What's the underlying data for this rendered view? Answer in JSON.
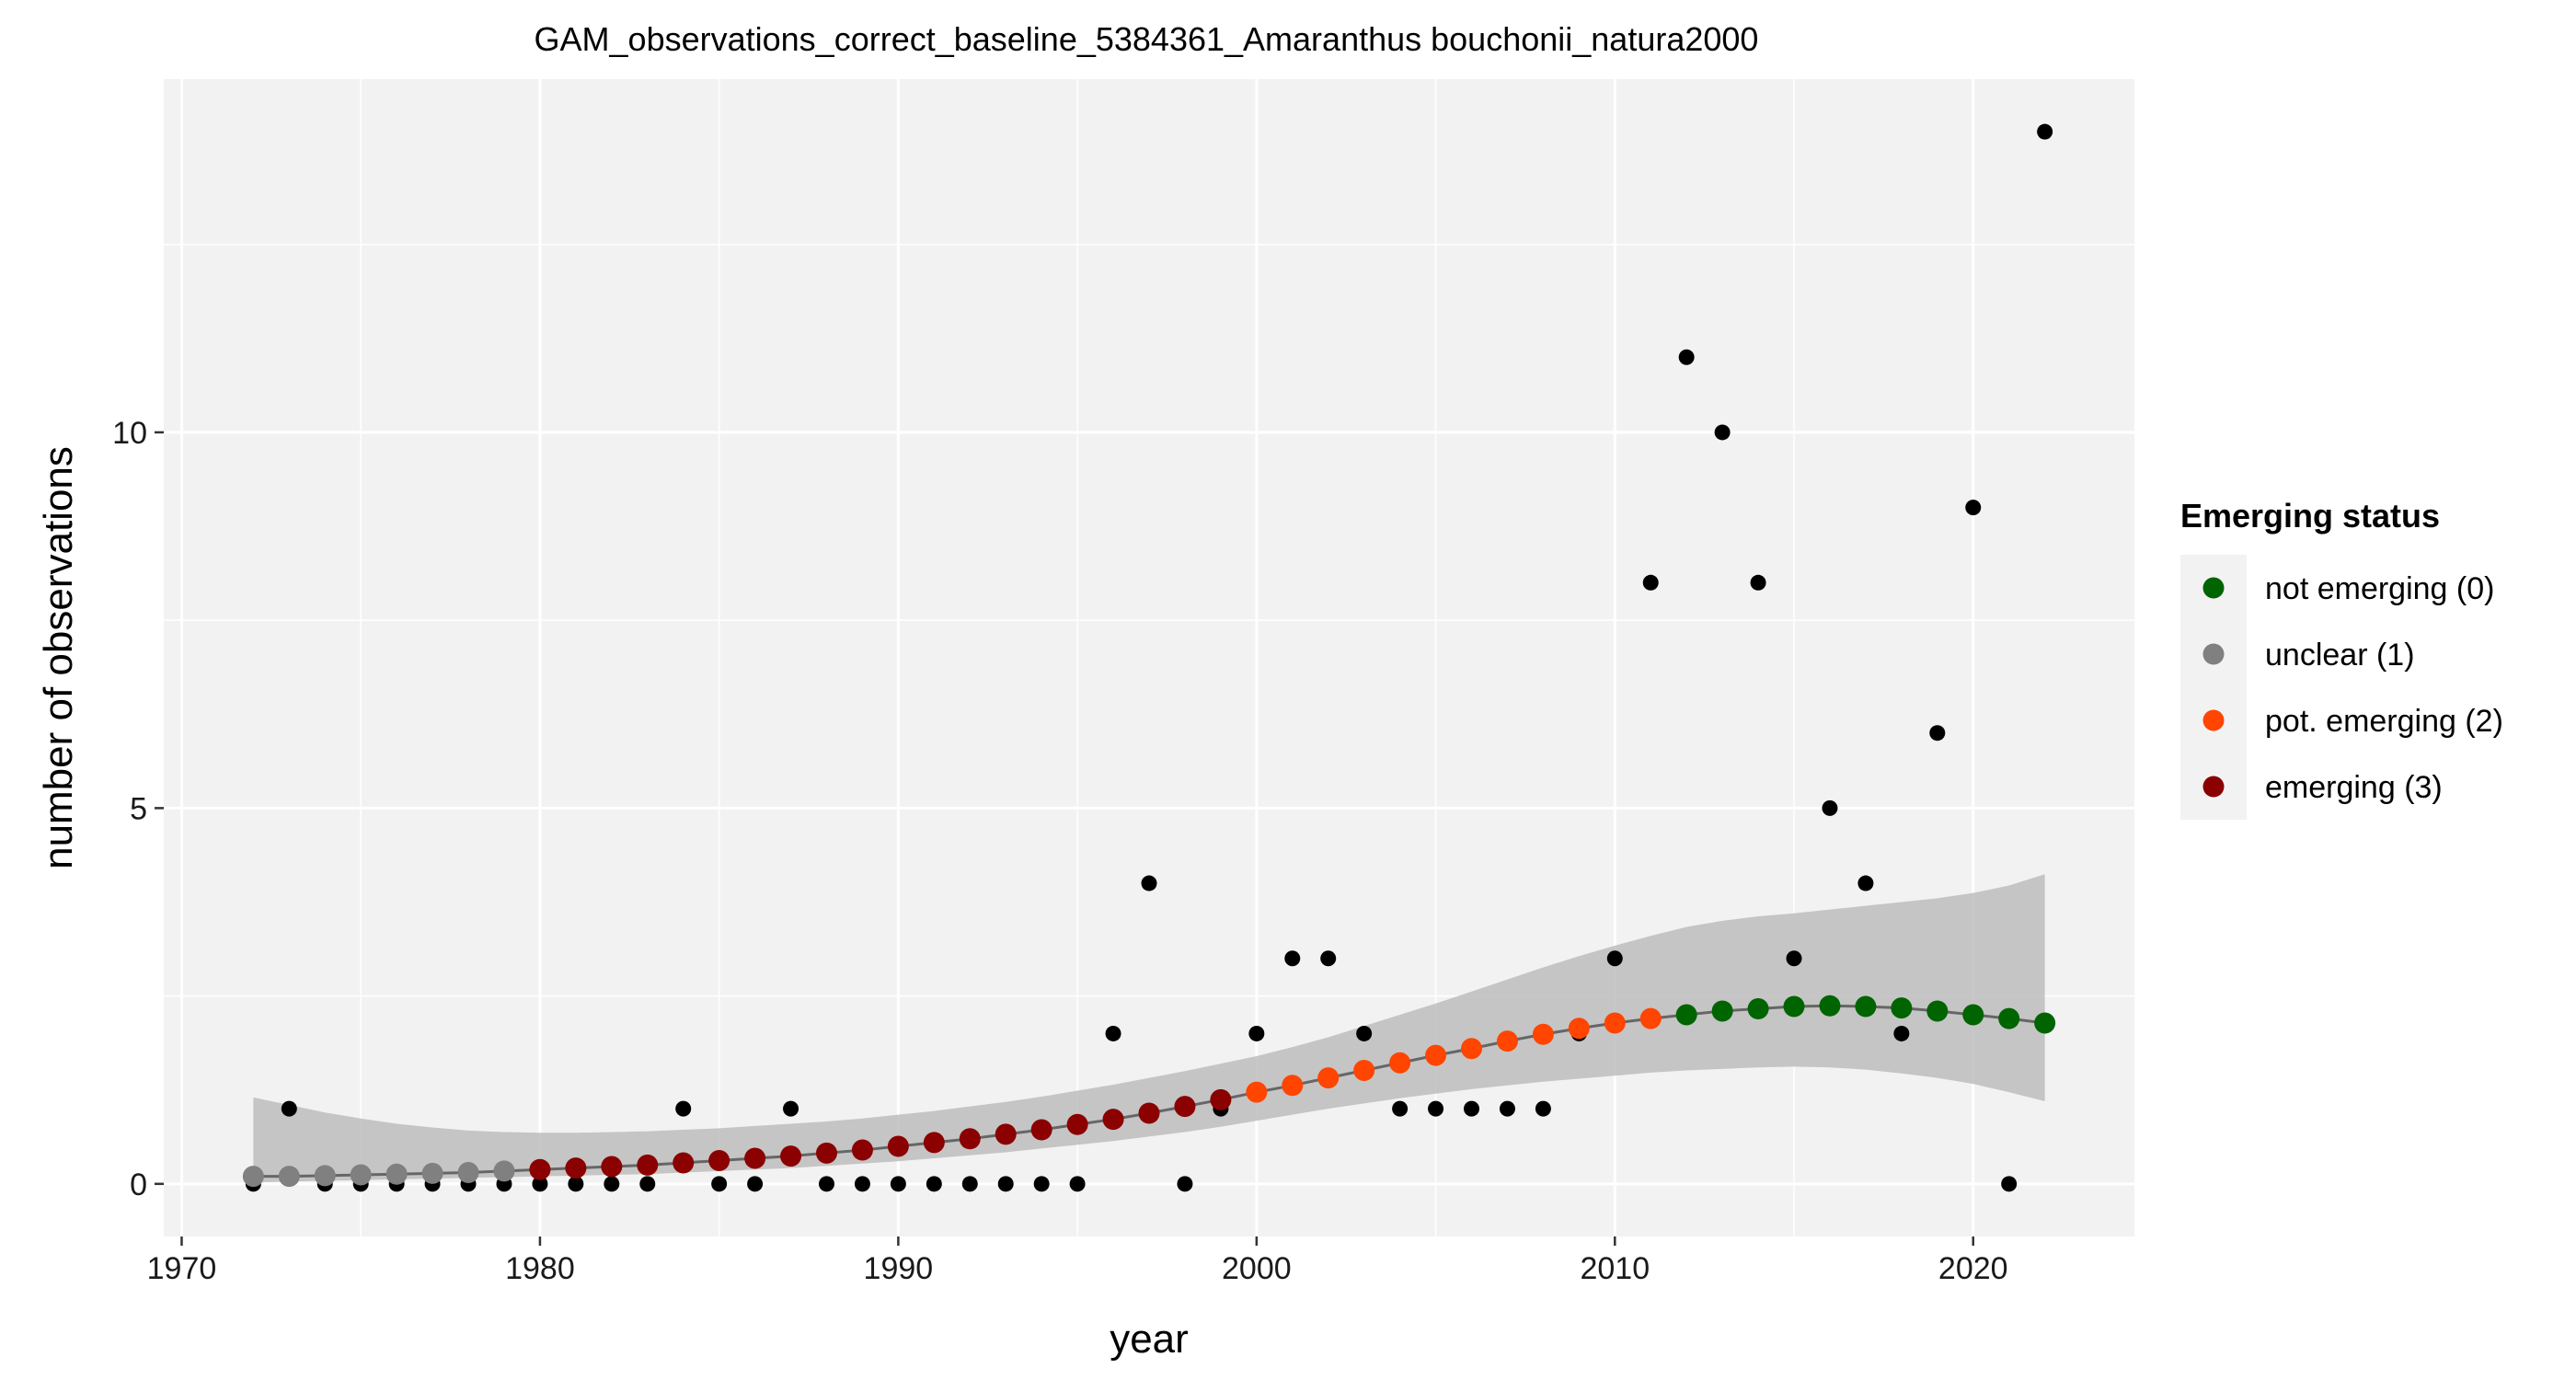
{
  "chart_data": {
    "type": "scatter",
    "title": "GAM_observations_correct_baseline_5384361_Amaranthus bouchonii_natura2000",
    "xlabel": "year",
    "ylabel": "number of observations",
    "xlim": [
      1969.5,
      2024.5
    ],
    "ylim": [
      -0.7,
      14.7
    ],
    "x_ticks": [
      1970,
      1980,
      1990,
      2000,
      2010,
      2020
    ],
    "y_ticks": [
      0,
      5,
      10
    ],
    "grid": true,
    "legend": {
      "title": "Emerging status",
      "position": "right",
      "entries": [
        {
          "label": "not emerging (0)",
          "color": "#006400"
        },
        {
          "label": "unclear (1)",
          "color": "#808080"
        },
        {
          "label": "pot. emerging (2)",
          "color": "#FF4500"
        },
        {
          "label": "emerging (3)",
          "color": "#8B0000"
        }
      ]
    },
    "observations": {
      "name": "observations",
      "color": "#000000",
      "x": [
        1972,
        1973,
        1974,
        1975,
        1976,
        1977,
        1978,
        1979,
        1980,
        1981,
        1982,
        1983,
        1984,
        1985,
        1986,
        1987,
        1988,
        1989,
        1990,
        1991,
        1992,
        1993,
        1994,
        1995,
        1996,
        1997,
        1998,
        1999,
        2000,
        2001,
        2002,
        2003,
        2004,
        2005,
        2006,
        2007,
        2008,
        2009,
        2010,
        2011,
        2012,
        2013,
        2014,
        2015,
        2016,
        2017,
        2018,
        2019,
        2020,
        2021,
        2022
      ],
      "y": [
        0,
        1,
        0,
        0,
        0,
        0,
        0,
        0,
        0,
        0,
        0,
        0,
        1,
        0,
        0,
        1,
        0,
        0,
        0,
        0,
        0,
        0,
        0,
        0,
        2,
        4,
        0,
        1,
        2,
        3,
        3,
        2,
        1,
        1,
        1,
        1,
        1,
        2,
        3,
        8,
        11,
        10,
        8,
        3,
        5,
        4,
        2,
        6,
        9,
        0,
        14
      ]
    },
    "fit": {
      "name": "GAM fit",
      "line_color": "#666666",
      "ribbon_color": "#bdbdbd",
      "x": [
        1972,
        1973,
        1974,
        1975,
        1976,
        1977,
        1978,
        1979,
        1980,
        1981,
        1982,
        1983,
        1984,
        1985,
        1986,
        1987,
        1988,
        1989,
        1990,
        1991,
        1992,
        1993,
        1994,
        1995,
        1996,
        1997,
        1998,
        1999,
        2000,
        2001,
        2002,
        2003,
        2004,
        2005,
        2006,
        2007,
        2008,
        2009,
        2010,
        2011,
        2012,
        2013,
        2014,
        2015,
        2016,
        2017,
        2018,
        2019,
        2020,
        2021,
        2022
      ],
      "y": [
        0.1,
        0.1,
        0.11,
        0.12,
        0.13,
        0.14,
        0.15,
        0.17,
        0.19,
        0.21,
        0.23,
        0.25,
        0.28,
        0.31,
        0.34,
        0.37,
        0.41,
        0.45,
        0.5,
        0.55,
        0.6,
        0.66,
        0.72,
        0.79,
        0.86,
        0.94,
        1.03,
        1.12,
        1.22,
        1.31,
        1.41,
        1.51,
        1.61,
        1.71,
        1.8,
        1.9,
        1.99,
        2.07,
        2.14,
        2.2,
        2.25,
        2.3,
        2.33,
        2.36,
        2.37,
        2.36,
        2.34,
        2.3,
        2.25,
        2.2,
        2.14
      ],
      "lower": [
        0.02,
        0.03,
        0.04,
        0.05,
        0.06,
        0.07,
        0.08,
        0.09,
        0.1,
        0.11,
        0.12,
        0.13,
        0.15,
        0.17,
        0.19,
        0.21,
        0.24,
        0.27,
        0.3,
        0.34,
        0.38,
        0.42,
        0.47,
        0.52,
        0.57,
        0.63,
        0.69,
        0.76,
        0.84,
        0.92,
        1.0,
        1.07,
        1.14,
        1.2,
        1.26,
        1.31,
        1.36,
        1.4,
        1.44,
        1.48,
        1.51,
        1.53,
        1.55,
        1.56,
        1.55,
        1.52,
        1.47,
        1.41,
        1.33,
        1.22,
        1.1
      ],
      "upper": [
        1.15,
        1.05,
        0.95,
        0.87,
        0.8,
        0.75,
        0.71,
        0.69,
        0.68,
        0.68,
        0.69,
        0.7,
        0.72,
        0.74,
        0.77,
        0.8,
        0.83,
        0.87,
        0.92,
        0.97,
        1.03,
        1.09,
        1.16,
        1.24,
        1.32,
        1.41,
        1.5,
        1.6,
        1.7,
        1.82,
        1.95,
        2.1,
        2.25,
        2.4,
        2.56,
        2.72,
        2.88,
        3.03,
        3.17,
        3.3,
        3.42,
        3.5,
        3.56,
        3.6,
        3.65,
        3.7,
        3.75,
        3.8,
        3.87,
        3.97,
        4.12
      ],
      "status": [
        "unclear (1)",
        "unclear (1)",
        "unclear (1)",
        "unclear (1)",
        "unclear (1)",
        "unclear (1)",
        "unclear (1)",
        "unclear (1)",
        "emerging (3)",
        "emerging (3)",
        "emerging (3)",
        "emerging (3)",
        "emerging (3)",
        "emerging (3)",
        "emerging (3)",
        "emerging (3)",
        "emerging (3)",
        "emerging (3)",
        "emerging (3)",
        "emerging (3)",
        "emerging (3)",
        "emerging (3)",
        "emerging (3)",
        "emerging (3)",
        "emerging (3)",
        "emerging (3)",
        "emerging (3)",
        "emerging (3)",
        "pot. emerging (2)",
        "pot. emerging (2)",
        "pot. emerging (2)",
        "pot. emerging (2)",
        "pot. emerging (2)",
        "pot. emerging (2)",
        "pot. emerging (2)",
        "pot. emerging (2)",
        "pot. emerging (2)",
        "pot. emerging (2)",
        "pot. emerging (2)",
        "pot. emerging (2)",
        "not emerging (0)",
        "not emerging (0)",
        "not emerging (0)",
        "not emerging (0)",
        "not emerging (0)",
        "not emerging (0)",
        "not emerging (0)",
        "not emerging (0)",
        "not emerging (0)",
        "not emerging (0)",
        "not emerging (0)"
      ]
    }
  }
}
